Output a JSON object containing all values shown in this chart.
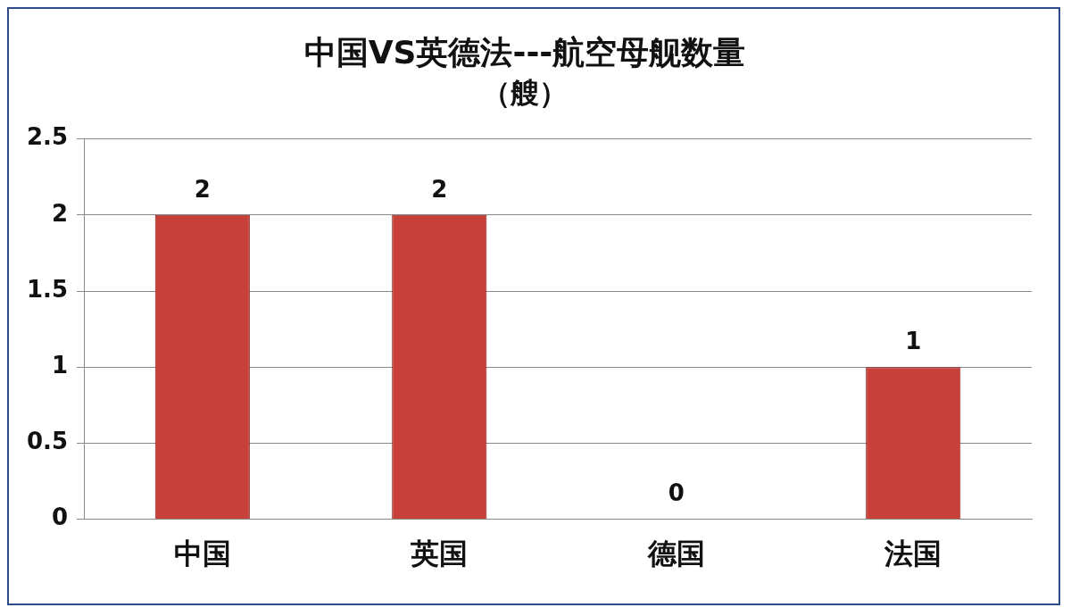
{
  "chart_data": {
    "type": "bar",
    "title": "中国VS英德法---航空母舰数量",
    "subtitle": "（艘）",
    "categories": [
      "中国",
      "英国",
      "德国",
      "法国"
    ],
    "values": [
      2,
      2,
      0,
      1
    ],
    "color": "#c8403a",
    "ylim": [
      0,
      2.5
    ],
    "yticks": [
      0,
      0.5,
      1,
      1.5,
      2,
      2.5
    ],
    "grid": "y",
    "data_labels": true
  }
}
